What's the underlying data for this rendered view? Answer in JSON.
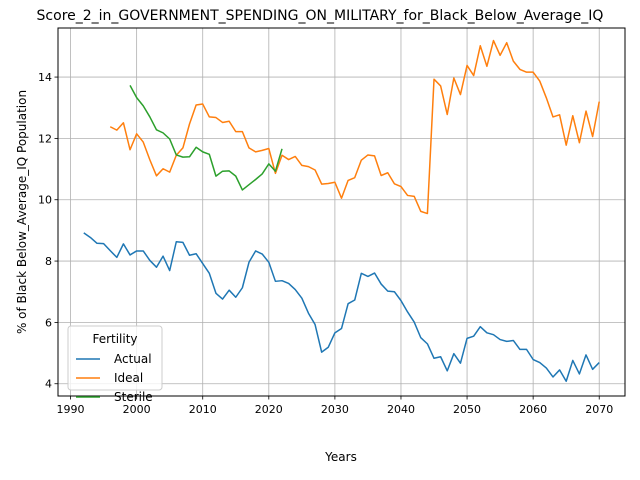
{
  "chart_data": {
    "type": "line",
    "title": "Score_2_in_GOVERNMENT_SPENDING_ON_MILITARY_for_Black_Below_Average_IQ",
    "xlabel": "Years",
    "ylabel": "% of Black Below_Average_IQ Population",
    "xlim": [
      1988.1,
      2073.9
    ],
    "ylim": [
      3.6,
      15.6
    ],
    "xticks": [
      1990,
      2000,
      2010,
      2020,
      2030,
      2040,
      2050,
      2060,
      2070
    ],
    "yticks": [
      4,
      6,
      8,
      10,
      12,
      14
    ],
    "grid": true,
    "legend": {
      "title": "Fertility",
      "placement": "lower-left"
    },
    "series": [
      {
        "name": "Actual",
        "color": "#1f77b4",
        "x": [
          1992,
          1993,
          1994,
          1995,
          1996,
          1997,
          1998,
          1999,
          2000,
          2001,
          2002,
          2003,
          2004,
          2005,
          2006,
          2007,
          2008,
          2009,
          2010,
          2011,
          2012,
          2013,
          2014,
          2015,
          2016,
          2017,
          2018,
          2019,
          2020,
          2021,
          2022,
          2023,
          2024,
          2025,
          2026,
          2027,
          2028,
          2029,
          2030,
          2031,
          2032,
          2033,
          2034,
          2035,
          2036,
          2037,
          2038,
          2039,
          2040,
          2041,
          2042,
          2043,
          2044,
          2045,
          2046,
          2047,
          2048,
          2049,
          2050,
          2051,
          2052,
          2053,
          2054,
          2055,
          2056,
          2057,
          2058,
          2059,
          2060,
          2061,
          2062,
          2063,
          2064,
          2065,
          2066,
          2067,
          2068,
          2069,
          2070
        ],
        "values": [
          8.92,
          8.77,
          8.58,
          8.57,
          8.34,
          8.12,
          8.56,
          8.2,
          8.33,
          8.33,
          8.02,
          7.8,
          8.16,
          7.69,
          8.63,
          8.61,
          8.19,
          8.24,
          7.92,
          7.6,
          6.95,
          6.76,
          7.05,
          6.82,
          7.13,
          7.96,
          8.33,
          8.23,
          7.96,
          7.34,
          7.36,
          7.27,
          7.07,
          6.79,
          6.3,
          5.93,
          5.03,
          5.19,
          5.66,
          5.8,
          6.61,
          6.73,
          7.6,
          7.5,
          7.61,
          7.25,
          7.02,
          7.0,
          6.71,
          6.34,
          6.01,
          5.5,
          5.3,
          4.83,
          4.88,
          4.42,
          4.98,
          4.67,
          5.48,
          5.55,
          5.86,
          5.66,
          5.6,
          5.44,
          5.38,
          5.41,
          5.12,
          5.12,
          4.79,
          4.69,
          4.51,
          4.22,
          4.45,
          4.08,
          4.76,
          4.32,
          4.94,
          4.47,
          4.69
        ]
      },
      {
        "name": "Ideal",
        "color": "#ff7f0e",
        "x": [
          1996,
          1997,
          1998,
          1999,
          2000,
          2001,
          2002,
          2003,
          2004,
          2005,
          2006,
          2007,
          2008,
          2009,
          2010,
          2011,
          2012,
          2013,
          2014,
          2015,
          2016,
          2017,
          2018,
          2019,
          2020,
          2021,
          2022,
          2023,
          2024,
          2025,
          2026,
          2027,
          2028,
          2029,
          2030,
          2031,
          2032,
          2033,
          2034,
          2035,
          2036,
          2037,
          2038,
          2039,
          2040,
          2041,
          2042,
          2043,
          2044,
          2045,
          2046,
          2047,
          2048,
          2049,
          2050,
          2051,
          2052,
          2053,
          2054,
          2055,
          2056,
          2057,
          2058,
          2059,
          2060,
          2061,
          2062,
          2063,
          2064,
          2065,
          2066,
          2067,
          2068,
          2069,
          2070
        ],
        "values": [
          12.38,
          12.27,
          12.51,
          11.63,
          12.15,
          11.88,
          11.3,
          10.78,
          11.01,
          10.9,
          11.45,
          11.69,
          12.47,
          13.09,
          13.12,
          12.7,
          12.68,
          12.52,
          12.56,
          12.22,
          12.22,
          11.69,
          11.56,
          11.61,
          11.67,
          10.86,
          11.45,
          11.31,
          11.41,
          11.12,
          11.08,
          10.97,
          10.51,
          10.53,
          10.57,
          10.05,
          10.63,
          10.72,
          11.29,
          11.46,
          11.43,
          10.79,
          10.88,
          10.52,
          10.43,
          10.14,
          10.11,
          9.62,
          9.55,
          13.93,
          13.71,
          12.78,
          13.97,
          13.43,
          14.38,
          14.05,
          15.02,
          14.35,
          15.19,
          14.71,
          15.12,
          14.52,
          14.25,
          14.16,
          14.16,
          13.87,
          13.32,
          12.7,
          12.77,
          11.78,
          12.74,
          11.86,
          12.89,
          12.06,
          13.2
        ]
      },
      {
        "name": "Sterile",
        "color": "#2ca02c",
        "x": [
          1999,
          2000,
          2001,
          2002,
          2003,
          2004,
          2005,
          2006,
          2007,
          2008,
          2009,
          2010,
          2011,
          2012,
          2013,
          2014,
          2015,
          2016,
          2017,
          2018,
          2019,
          2020,
          2021,
          2022
        ],
        "values": [
          13.73,
          13.33,
          13.06,
          12.7,
          12.28,
          12.18,
          11.98,
          11.46,
          11.39,
          11.4,
          11.71,
          11.56,
          11.48,
          10.77,
          10.93,
          10.94,
          10.77,
          10.32,
          10.49,
          10.66,
          10.84,
          11.17,
          10.93,
          11.66
        ]
      }
    ]
  }
}
